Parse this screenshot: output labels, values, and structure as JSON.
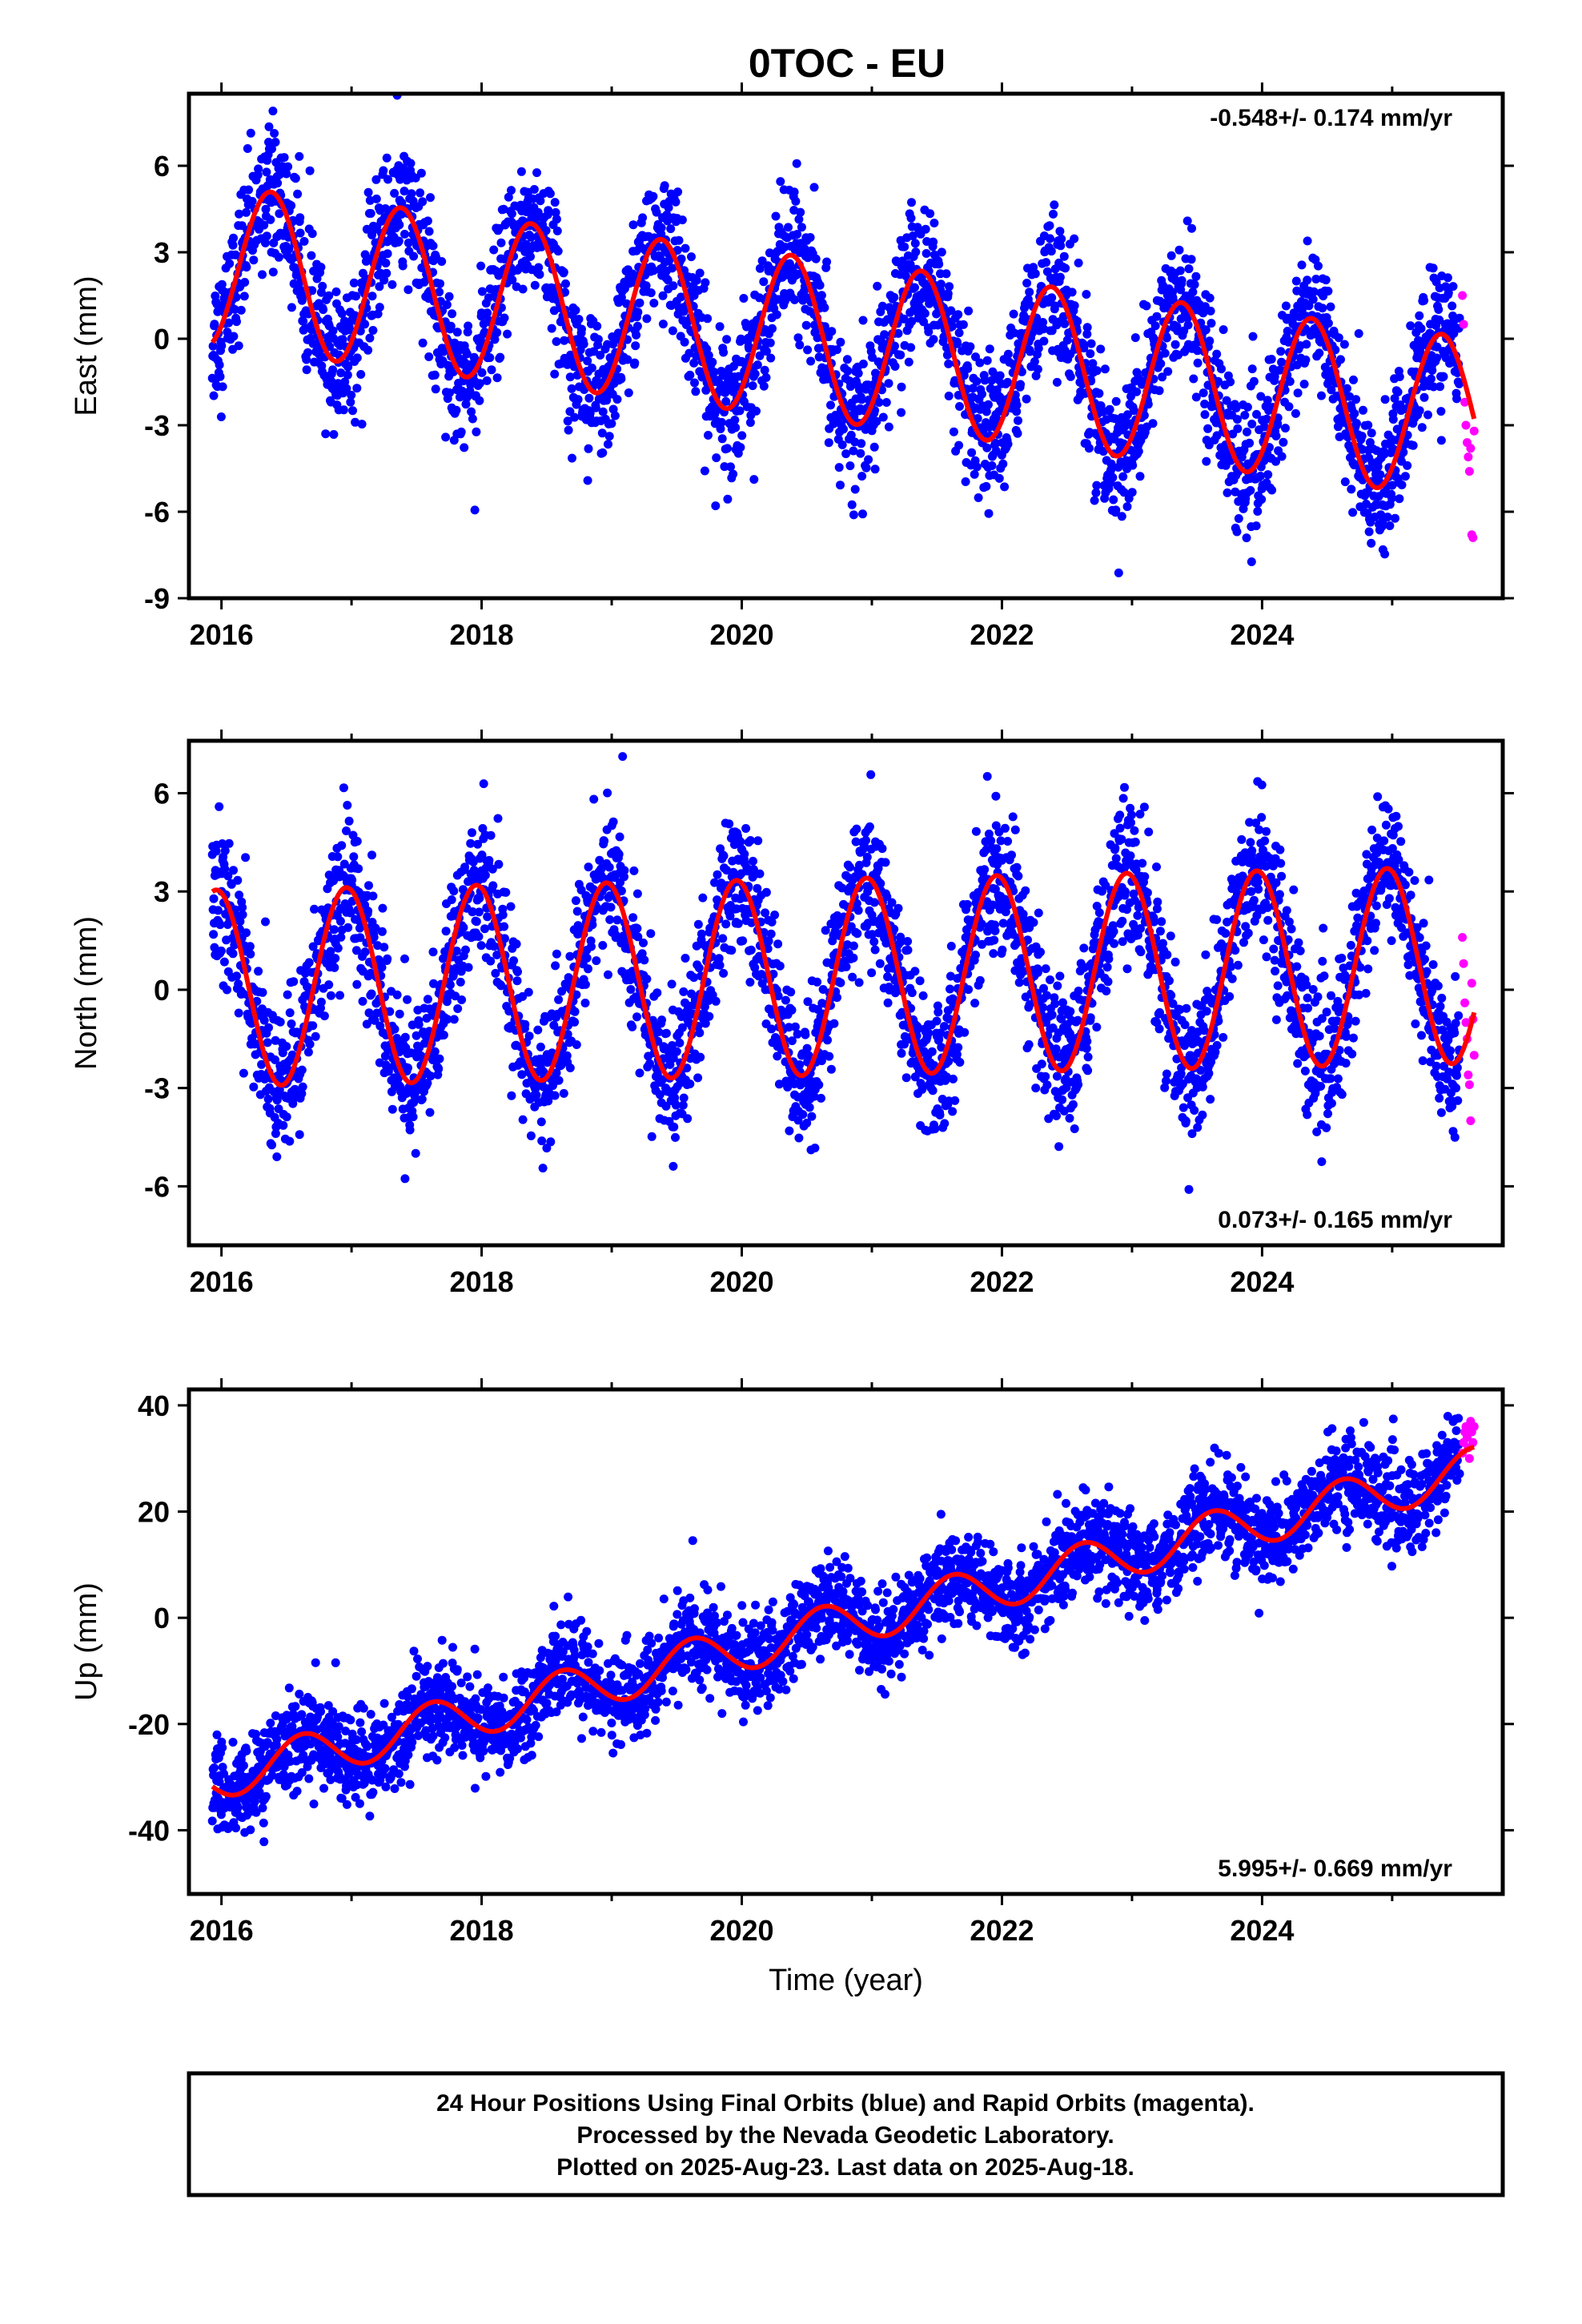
{
  "title": "0TOC - EU",
  "colors": {
    "final": "#0000ff",
    "rapid": "#ff00ff",
    "fit": "#ff0000",
    "frame": "#000000"
  },
  "chart_data": [
    {
      "type": "scatter",
      "ylabel": "East (mm)",
      "rate": "-0.548+/- 0.174 mm/yr",
      "rate_position": "top-right",
      "xlim": [
        2015.75,
        2025.85
      ],
      "ylim": [
        -9,
        8.5
      ],
      "xticks": [
        "2016",
        "2018",
        "2020",
        "2022",
        "2024"
      ],
      "yticks": [
        "6",
        "3",
        "0",
        "-3",
        "-6",
        "-9"
      ],
      "ytick_values": [
        6,
        3,
        0,
        -3,
        -6,
        -9
      ],
      "data_span": {
        "start": 2015.93,
        "final_end": 2025.52,
        "rapid_end": 2025.63
      },
      "fit": {
        "offset": 2.5,
        "trend": -0.548,
        "amplitude": 2.8,
        "peak_phase": 0.38
      },
      "noise_sd": 1.2,
      "rapid_values": [
        1.5,
        0.5,
        -2.2,
        -3.0,
        -3.6,
        -4.1,
        -4.6,
        -3.8,
        -6.8,
        -6.9,
        -3.2
      ]
    },
    {
      "type": "scatter",
      "ylabel": "North (mm)",
      "rate": "0.073+/- 0.165 mm/yr",
      "rate_position": "bottom-right",
      "xlim": [
        2015.75,
        2025.85
      ],
      "ylim": [
        -7.8,
        7.6
      ],
      "xticks": [
        "2016",
        "2018",
        "2020",
        "2022",
        "2024"
      ],
      "yticks": [
        "6",
        "3",
        "0",
        "-3",
        "-6"
      ],
      "ytick_values": [
        6,
        3,
        0,
        -3,
        -6
      ],
      "data_span": {
        "start": 2015.93,
        "final_end": 2025.52,
        "rapid_end": 2025.63
      },
      "fit": {
        "offset": 0.05,
        "trend": 0.073,
        "amplitude": 3.0,
        "peak_phase": 0.96
      },
      "noise_sd": 1.1,
      "rapid_values": [
        1.6,
        0.8,
        -0.4,
        -1.0,
        -1.5,
        -2.6,
        -2.9,
        -4.0,
        0.2,
        -0.9,
        -2.0
      ]
    },
    {
      "type": "scatter",
      "ylabel": "Up (mm)",
      "xlabel": "Time (year)",
      "rate": "5.995+/- 0.669 mm/yr",
      "rate_position": "bottom-right",
      "xlim": [
        2015.75,
        2025.85
      ],
      "ylim": [
        -52,
        43
      ],
      "xticks": [
        "2016",
        "2018",
        "2020",
        "2022",
        "2024"
      ],
      "yticks": [
        "40",
        "20",
        "0",
        "-20",
        "-40"
      ],
      "ytick_values": [
        40,
        20,
        0,
        -20,
        -40
      ],
      "data_span": {
        "start": 2015.93,
        "final_end": 2025.52,
        "rapid_end": 2025.63
      },
      "fit": {
        "offset": -29.8,
        "trend": 5.995,
        "amplitude": 4.2,
        "peak_phase": 0.62
      },
      "noise_sd": 4.3,
      "rapid_values": [
        31,
        33,
        35,
        36,
        34,
        32,
        30,
        37,
        35,
        33,
        36
      ]
    }
  ],
  "footer": {
    "line1": "24 Hour Positions Using Final Orbits (blue) and Rapid Orbits (magenta).",
    "line2": "Processed by the Nevada Geodetic Laboratory.",
    "line3": "Plotted on 2025-Aug-23. Last data on 2025-Aug-18."
  }
}
